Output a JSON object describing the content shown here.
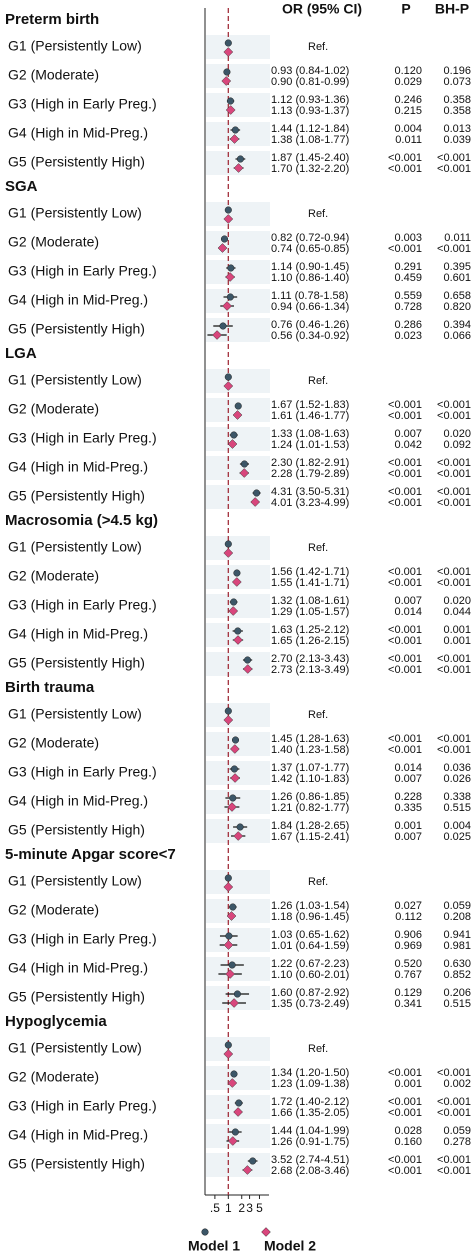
{
  "header": {
    "or_ci": "OR (95% CI)",
    "p": "P",
    "bh_p": "BH-P"
  },
  "chart_data": {
    "type": "forest",
    "xscale": "log",
    "xlim": [
      0.3,
      6
    ],
    "xticks": [
      {
        "value": 0.5,
        "label": ".5"
      },
      1,
      2,
      3,
      5
    ],
    "reference_line": 1,
    "series": [
      {
        "name": "Model 1",
        "color": "#3c5667",
        "marker": "circle"
      },
      {
        "name": "Model 2",
        "color": "#d8467c",
        "marker": "diamond"
      }
    ],
    "outcomes": [
      {
        "name": "Preterm birth",
        "groups": [
          {
            "label": "G1 (Persistently Low)",
            "ref": "Ref.",
            "models": [
              {
                "or": 1
              },
              {
                "or": 1
              }
            ]
          },
          {
            "label": "G2 (Moderate)",
            "models": [
              {
                "or": 0.93,
                "lo": 0.84,
                "hi": 1.02,
                "label": "0.93 (0.84-1.02)",
                "p": "0.120",
                "bh_p": "0.196"
              },
              {
                "or": 0.9,
                "lo": 0.81,
                "hi": 0.99,
                "label": "0.90 (0.81-0.99)",
                "p": "0.029",
                "bh_p": "0.073"
              }
            ]
          },
          {
            "label": "G3 (High in Early Preg.)",
            "models": [
              {
                "or": 1.12,
                "lo": 0.93,
                "hi": 1.36,
                "label": "1.12 (0.93-1.36)",
                "p": "0.246",
                "bh_p": "0.358"
              },
              {
                "or": 1.13,
                "lo": 0.93,
                "hi": 1.37,
                "label": "1.13 (0.93-1.37)",
                "p": "0.215",
                "bh_p": "0.358"
              }
            ]
          },
          {
            "label": "G4 (High in Mid-Preg.)",
            "models": [
              {
                "or": 1.44,
                "lo": 1.12,
                "hi": 1.84,
                "label": "1.44 (1.12-1.84)",
                "p": "0.004",
                "bh_p": "0.013"
              },
              {
                "or": 1.38,
                "lo": 1.08,
                "hi": 1.77,
                "label": "1.38 (1.08-1.77)",
                "p": "0.011",
                "bh_p": "0.039"
              }
            ]
          },
          {
            "label": "G5 (Persistently High)",
            "models": [
              {
                "or": 1.87,
                "lo": 1.45,
                "hi": 2.4,
                "label": "1.87 (1.45-2.40)",
                "p": "<0.001",
                "bh_p": "<0.001"
              },
              {
                "or": 1.7,
                "lo": 1.32,
                "hi": 2.2,
                "label": "1.70 (1.32-2.20)",
                "p": "<0.001",
                "bh_p": "<0.001"
              }
            ]
          }
        ]
      },
      {
        "name": "SGA",
        "groups": [
          {
            "label": "G1 (Persistently Low)",
            "ref": "Ref.",
            "models": [
              {
                "or": 1
              },
              {
                "or": 1
              }
            ]
          },
          {
            "label": "G2 (Moderate)",
            "models": [
              {
                "or": 0.82,
                "lo": 0.72,
                "hi": 0.94,
                "label": "0.82 (0.72-0.94)",
                "p": "0.003",
                "bh_p": "0.011"
              },
              {
                "or": 0.74,
                "lo": 0.65,
                "hi": 0.85,
                "label": "0.74 (0.65-0.85)",
                "p": "<0.001",
                "bh_p": "<0.001"
              }
            ]
          },
          {
            "label": "G3 (High in Early Preg.)",
            "models": [
              {
                "or": 1.14,
                "lo": 0.9,
                "hi": 1.45,
                "label": "1.14 (0.90-1.45)",
                "p": "0.291",
                "bh_p": "0.395"
              },
              {
                "or": 1.1,
                "lo": 0.86,
                "hi": 1.4,
                "label": "1.10 (0.86-1.40)",
                "p": "0.459",
                "bh_p": "0.601"
              }
            ]
          },
          {
            "label": "G4 (High in Mid-Preg.)",
            "models": [
              {
                "or": 1.11,
                "lo": 0.78,
                "hi": 1.58,
                "label": "1.11 (0.78-1.58)",
                "p": "0.559",
                "bh_p": "0.658"
              },
              {
                "or": 0.94,
                "lo": 0.66,
                "hi": 1.34,
                "label": "0.94 (0.66-1.34)",
                "p": "0.728",
                "bh_p": "0.820"
              }
            ]
          },
          {
            "label": "G5 (Persistently High)",
            "models": [
              {
                "or": 0.76,
                "lo": 0.46,
                "hi": 1.26,
                "label": "0.76 (0.46-1.26)",
                "p": "0.286",
                "bh_p": "0.394"
              },
              {
                "or": 0.56,
                "lo": 0.34,
                "hi": 0.92,
                "label": "0.56 (0.34-0.92)",
                "p": "0.023",
                "bh_p": "0.066"
              }
            ]
          }
        ]
      },
      {
        "name": "LGA",
        "groups": [
          {
            "label": "G1 (Persistently Low)",
            "ref": "Ref.",
            "models": [
              {
                "or": 1
              },
              {
                "or": 1
              }
            ]
          },
          {
            "label": "G2 (Moderate)",
            "models": [
              {
                "or": 1.67,
                "lo": 1.52,
                "hi": 1.83,
                "label": "1.67 (1.52-1.83)",
                "p": "<0.001",
                "bh_p": "<0.001"
              },
              {
                "or": 1.61,
                "lo": 1.46,
                "hi": 1.77,
                "label": "1.61 (1.46-1.77)",
                "p": "<0.001",
                "bh_p": "<0.001"
              }
            ]
          },
          {
            "label": "G3 (High in Early Preg.)",
            "models": [
              {
                "or": 1.33,
                "lo": 1.08,
                "hi": 1.63,
                "label": "1.33 (1.08-1.63)",
                "p": "0.007",
                "bh_p": "0.020"
              },
              {
                "or": 1.24,
                "lo": 1.01,
                "hi": 1.53,
                "label": "1.24 (1.01-1.53)",
                "p": "0.042",
                "bh_p": "0.092"
              }
            ]
          },
          {
            "label": "G4 (High in Mid-Preg.)",
            "models": [
              {
                "or": 2.3,
                "lo": 1.82,
                "hi": 2.91,
                "label": "2.30 (1.82-2.91)",
                "p": "<0.001",
                "bh_p": "<0.001"
              },
              {
                "or": 2.28,
                "lo": 1.79,
                "hi": 2.89,
                "label": "2.28 (1.79-2.89)",
                "p": "<0.001",
                "bh_p": "<0.001"
              }
            ]
          },
          {
            "label": "G5 (Persistently High)",
            "models": [
              {
                "or": 4.31,
                "lo": 3.5,
                "hi": 5.31,
                "label": "4.31 (3.50-5.31)",
                "p": "<0.001",
                "bh_p": "<0.001"
              },
              {
                "or": 4.01,
                "lo": 3.23,
                "hi": 4.99,
                "label": "4.01 (3.23-4.99)",
                "p": "<0.001",
                "bh_p": "<0.001"
              }
            ]
          }
        ]
      },
      {
        "name": "Macrosomia (>4.5 kg)",
        "groups": [
          {
            "label": "G1 (Persistently Low)",
            "ref": "Ref.",
            "models": [
              {
                "or": 1
              },
              {
                "or": 1
              }
            ]
          },
          {
            "label": "G2 (Moderate)",
            "models": [
              {
                "or": 1.56,
                "lo": 1.42,
                "hi": 1.71,
                "label": "1.56 (1.42-1.71)",
                "p": "<0.001",
                "bh_p": "<0.001"
              },
              {
                "or": 1.55,
                "lo": 1.41,
                "hi": 1.71,
                "label": "1.55 (1.41-1.71)",
                "p": "<0.001",
                "bh_p": "<0.001"
              }
            ]
          },
          {
            "label": "G3 (High in Early Preg.)",
            "models": [
              {
                "or": 1.32,
                "lo": 1.08,
                "hi": 1.61,
                "label": "1.32 (1.08-1.61)",
                "p": "0.007",
                "bh_p": "0.020"
              },
              {
                "or": 1.29,
                "lo": 1.05,
                "hi": 1.57,
                "label": "1.29 (1.05-1.57)",
                "p": "0.014",
                "bh_p": "0.044"
              }
            ]
          },
          {
            "label": "G4 (High in Mid-Preg.)",
            "models": [
              {
                "or": 1.63,
                "lo": 1.25,
                "hi": 2.12,
                "label": "1.63 (1.25-2.12)",
                "p": "<0.001",
                "bh_p": "0.001"
              },
              {
                "or": 1.65,
                "lo": 1.26,
                "hi": 2.15,
                "label": "1.65 (1.26-2.15)",
                "p": "<0.001",
                "bh_p": "0.001"
              }
            ]
          },
          {
            "label": "G5 (Persistently High)",
            "models": [
              {
                "or": 2.7,
                "lo": 2.13,
                "hi": 3.43,
                "label": "2.70 (2.13-3.43)",
                "p": "<0.001",
                "bh_p": "<0.001"
              },
              {
                "or": 2.73,
                "lo": 2.13,
                "hi": 3.49,
                "label": "2.73 (2.13-3.49)",
                "p": "<0.001",
                "bh_p": "<0.001"
              }
            ]
          }
        ]
      },
      {
        "name": "Birth trauma",
        "groups": [
          {
            "label": "G1 (Persistently Low)",
            "ref": "Ref.",
            "models": [
              {
                "or": 1
              },
              {
                "or": 1
              }
            ]
          },
          {
            "label": "G2 (Moderate)",
            "models": [
              {
                "or": 1.45,
                "lo": 1.28,
                "hi": 1.63,
                "label": "1.45 (1.28-1.63)",
                "p": "<0.001",
                "bh_p": "<0.001"
              },
              {
                "or": 1.4,
                "lo": 1.23,
                "hi": 1.58,
                "label": "1.40 (1.23-1.58)",
                "p": "<0.001",
                "bh_p": "<0.001"
              }
            ]
          },
          {
            "label": "G3 (High in Early Preg.)",
            "models": [
              {
                "or": 1.37,
                "lo": 1.07,
                "hi": 1.77,
                "label": "1.37 (1.07-1.77)",
                "p": "0.014",
                "bh_p": "0.036"
              },
              {
                "or": 1.42,
                "lo": 1.1,
                "hi": 1.83,
                "label": "1.42 (1.10-1.83)",
                "p": "0.007",
                "bh_p": "0.026"
              }
            ]
          },
          {
            "label": "G4 (High in Mid-Preg.)",
            "models": [
              {
                "or": 1.26,
                "lo": 0.86,
                "hi": 1.85,
                "label": "1.26 (0.86-1.85)",
                "p": "0.228",
                "bh_p": "0.338"
              },
              {
                "or": 1.21,
                "lo": 0.82,
                "hi": 1.77,
                "label": "1.21 (0.82-1.77)",
                "p": "0.335",
                "bh_p": "0.515"
              }
            ]
          },
          {
            "label": "G5 (Persistently High)",
            "models": [
              {
                "or": 1.84,
                "lo": 1.28,
                "hi": 2.65,
                "label": "1.84 (1.28-2.65)",
                "p": "0.001",
                "bh_p": "0.004"
              },
              {
                "or": 1.67,
                "lo": 1.15,
                "hi": 2.41,
                "label": "1.67 (1.15-2.41)",
                "p": "0.007",
                "bh_p": "0.025"
              }
            ]
          }
        ]
      },
      {
        "name": "5-minute Apgar score<7",
        "groups": [
          {
            "label": "G1 (Persistently Low)",
            "ref": "Ref.",
            "models": [
              {
                "or": 1
              },
              {
                "or": 1
              }
            ]
          },
          {
            "label": "G2 (Moderate)",
            "models": [
              {
                "or": 1.26,
                "lo": 1.03,
                "hi": 1.54,
                "label": "1.26 (1.03-1.54)",
                "p": "0.027",
                "bh_p": "0.059"
              },
              {
                "or": 1.18,
                "lo": 0.96,
                "hi": 1.45,
                "label": "1.18 (0.96-1.45)",
                "p": "0.112",
                "bh_p": "0.208"
              }
            ]
          },
          {
            "label": "G3 (High in Early Preg.)",
            "models": [
              {
                "or": 1.03,
                "lo": 0.65,
                "hi": 1.62,
                "label": "1.03 (0.65-1.62)",
                "p": "0.906",
                "bh_p": "0.941"
              },
              {
                "or": 1.01,
                "lo": 0.64,
                "hi": 1.59,
                "label": "1.01 (0.64-1.59)",
                "p": "0.969",
                "bh_p": "0.981"
              }
            ]
          },
          {
            "label": "G4 (High in Mid-Preg.)",
            "models": [
              {
                "or": 1.22,
                "lo": 0.67,
                "hi": 2.23,
                "label": "1.22 (0.67-2.23)",
                "p": "0.520",
                "bh_p": "0.630"
              },
              {
                "or": 1.1,
                "lo": 0.6,
                "hi": 2.01,
                "label": "1.10 (0.60-2.01)",
                "p": "0.767",
                "bh_p": "0.852"
              }
            ]
          },
          {
            "label": "G5 (Persistently High)",
            "models": [
              {
                "or": 1.6,
                "lo": 0.87,
                "hi": 2.92,
                "label": "1.60 (0.87-2.92)",
                "p": "0.129",
                "bh_p": "0.206"
              },
              {
                "or": 1.35,
                "lo": 0.73,
                "hi": 2.49,
                "label": "1.35 (0.73-2.49)",
                "p": "0.341",
                "bh_p": "0.515"
              }
            ]
          }
        ]
      },
      {
        "name": "Hypoglycemia",
        "groups": [
          {
            "label": "G1 (Persistently Low)",
            "ref": "Ref.",
            "models": [
              {
                "or": 1
              },
              {
                "or": 1
              }
            ]
          },
          {
            "label": "G2 (Moderate)",
            "models": [
              {
                "or": 1.34,
                "lo": 1.2,
                "hi": 1.5,
                "label": "1.34 (1.20-1.50)",
                "p": "<0.001",
                "bh_p": "<0.001"
              },
              {
                "or": 1.23,
                "lo": 1.09,
                "hi": 1.38,
                "label": "1.23 (1.09-1.38)",
                "p": "0.001",
                "bh_p": "0.002"
              }
            ]
          },
          {
            "label": "G3 (High in Early Preg.)",
            "models": [
              {
                "or": 1.72,
                "lo": 1.4,
                "hi": 2.12,
                "label": "1.72 (1.40-2.12)",
                "p": "<0.001",
                "bh_p": "<0.001"
              },
              {
                "or": 1.66,
                "lo": 1.35,
                "hi": 2.05,
                "label": "1.66 (1.35-2.05)",
                "p": "<0.001",
                "bh_p": "<0.001"
              }
            ]
          },
          {
            "label": "G4 (High in Mid-Preg.)",
            "models": [
              {
                "or": 1.44,
                "lo": 1.04,
                "hi": 1.99,
                "label": "1.44 (1.04-1.99)",
                "p": "0.028",
                "bh_p": "0.059"
              },
              {
                "or": 1.26,
                "lo": 0.91,
                "hi": 1.75,
                "label": "1.26 (0.91-1.75)",
                "p": "0.160",
                "bh_p": "0.278"
              }
            ]
          },
          {
            "label": "G5 (Persistently High)",
            "models": [
              {
                "or": 3.52,
                "lo": 2.74,
                "hi": 4.51,
                "label": "3.52 (2.74-4.51)",
                "p": "<0.001",
                "bh_p": "<0.001"
              },
              {
                "or": 2.68,
                "lo": 2.08,
                "hi": 3.46,
                "label": "2.68 (2.08-3.46)",
                "p": "<0.001",
                "bh_p": "<0.001"
              }
            ]
          }
        ]
      }
    ]
  }
}
